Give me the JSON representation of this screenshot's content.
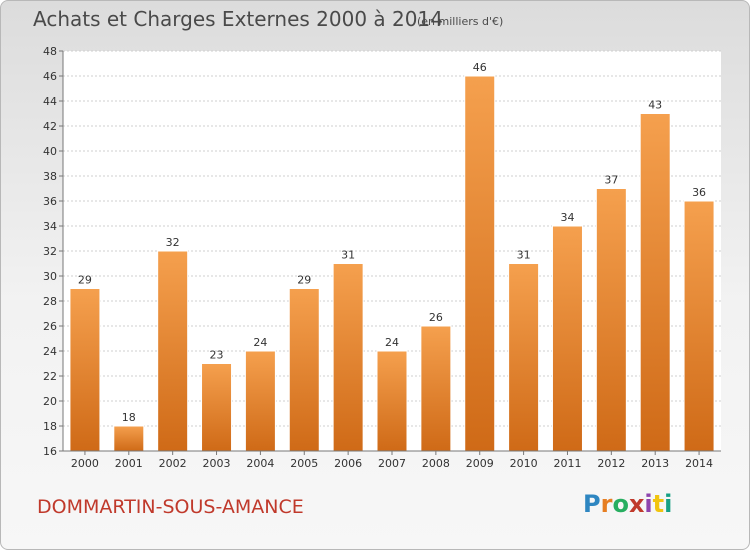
{
  "chart_data": {
    "type": "bar",
    "title": "Achats et Charges Externes 2000 à 2014",
    "unit": "(en milliers d'€)",
    "categories": [
      "2000",
      "2001",
      "2002",
      "2003",
      "2004",
      "2005",
      "2006",
      "2007",
      "2008",
      "2009",
      "2010",
      "2011",
      "2012",
      "2013",
      "2014"
    ],
    "values": [
      29,
      18,
      32,
      23,
      24,
      29,
      31,
      24,
      26,
      46,
      31,
      34,
      37,
      43,
      36
    ],
    "ylim": [
      16,
      48
    ],
    "yticks": [
      16,
      18,
      20,
      22,
      24,
      26,
      28,
      30,
      32,
      34,
      36,
      38,
      40,
      42,
      44,
      46,
      48
    ],
    "grid": true,
    "bar_color_top": "#f5a04e",
    "bar_color_bottom": "#cf6a17"
  },
  "footer": {
    "commune": "DOMMARTIN-SOUS-AMANCE",
    "logo_letters": [
      "P",
      "r",
      "o",
      "x",
      "i",
      "t",
      "i"
    ],
    "logo_colors": [
      "#2e86c1",
      "#e67e22",
      "#27ae60",
      "#c0392b",
      "#8e44ad",
      "#f1c40f",
      "#16a085"
    ]
  }
}
